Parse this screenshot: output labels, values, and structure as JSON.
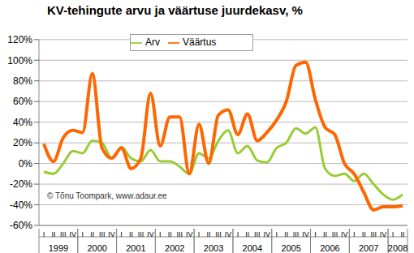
{
  "chart_data": {
    "type": "line",
    "title": "KV-tehingute arvu ja väärtuse juurdekasv, %",
    "annotation": "© Tõnu Toompark, www.adaur.ee",
    "categories": [
      "I",
      "II",
      "III",
      "IV",
      "I",
      "II",
      "III",
      "IV",
      "I",
      "II",
      "III",
      "IV",
      "I",
      "II",
      "III",
      "IV",
      "I",
      "II",
      "III",
      "IV",
      "I",
      "II",
      "III",
      "IV",
      "I",
      "II",
      "III",
      "IV",
      "I",
      "II",
      "III",
      "IV",
      "I",
      "II",
      "III",
      "IV",
      "I",
      "II"
    ],
    "years": [
      "1999",
      "2000",
      "2001",
      "2002",
      "2003",
      "2004",
      "2005",
      "2006",
      "2007",
      "2008"
    ],
    "series": [
      {
        "name": "Arv",
        "color": "#99cc33",
        "values": [
          -8,
          -10,
          0,
          12,
          10,
          22,
          20,
          5,
          16,
          5,
          2,
          13,
          2,
          2,
          -3,
          -10,
          10,
          5,
          22,
          32,
          10,
          17,
          3,
          1,
          15,
          20,
          34,
          29,
          35,
          -5,
          -12,
          -10,
          -17,
          -10,
          -20,
          -30,
          -35,
          -30
        ]
      },
      {
        "name": "Väärtus",
        "color": "#ff6600",
        "values": [
          19,
          2,
          25,
          32,
          30,
          87,
          15,
          5,
          15,
          -5,
          5,
          68,
          17,
          45,
          45,
          -10,
          38,
          0,
          47,
          52,
          28,
          48,
          22,
          30,
          42,
          60,
          95,
          98,
          62,
          35,
          28,
          0,
          -10,
          -28,
          -45,
          -42,
          -42,
          -41
        ]
      }
    ],
    "ylim": [
      -60,
      120
    ],
    "yticks": [
      {
        "value": -60,
        "label": "-60%"
      },
      {
        "value": -40,
        "label": "-40%"
      },
      {
        "value": -20,
        "label": "-20%"
      },
      {
        "value": 0,
        "label": "0%"
      },
      {
        "value": 20,
        "label": "20%"
      },
      {
        "value": 40,
        "label": "40%"
      },
      {
        "value": 60,
        "label": "60%"
      },
      {
        "value": 80,
        "label": "80%"
      },
      {
        "value": 100,
        "label": "100%"
      },
      {
        "value": 120,
        "label": "120%"
      }
    ],
    "grid": true,
    "legend": "top"
  }
}
